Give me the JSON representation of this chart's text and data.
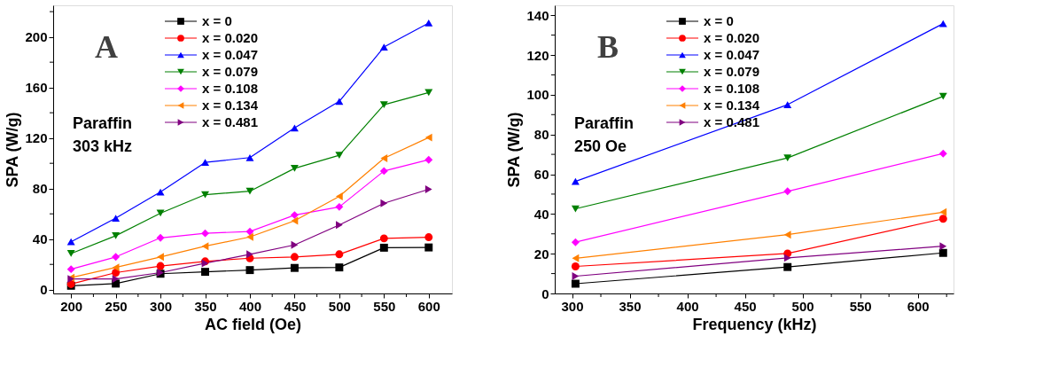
{
  "chart_data": [
    {
      "type": "line",
      "xlabel": "AC field (Oe)",
      "ylabel": "SPA (W/g)",
      "annotations": [
        "A",
        "Paraffin\n303 kHz"
      ],
      "x": [
        200,
        250,
        300,
        350,
        400,
        450,
        500,
        550,
        600
      ],
      "xlim": [
        180,
        626
      ],
      "ylim": [
        -3,
        225
      ],
      "xticks": [
        200,
        {
          "value": 225,
          "label": null
        },
        250,
        {
          "value": 275,
          "label": null
        },
        300,
        {
          "value": 325,
          "label": null
        },
        350,
        {
          "value": 375,
          "label": null
        },
        400,
        {
          "value": 425,
          "label": null
        },
        450,
        {
          "value": 475,
          "label": null
        },
        500,
        {
          "value": 525,
          "label": null
        },
        550,
        {
          "value": 575,
          "label": null
        },
        600
      ],
      "yticks": [
        0,
        {
          "value": 20,
          "label": null
        },
        40,
        {
          "value": 60,
          "label": null
        },
        80,
        {
          "value": 100,
          "label": null
        },
        120,
        {
          "value": 140,
          "label": null
        },
        160,
        {
          "value": 180,
          "label": null
        },
        200,
        {
          "value": 220,
          "label": null
        }
      ],
      "grid": false,
      "legend": "top left",
      "series": [
        {
          "name": "x = 0",
          "color": "#000000",
          "marker": "square",
          "values": [
            3.1,
            4.8,
            12.6,
            14.1,
            15.5,
            17.2,
            17.6,
            33.2,
            33.4
          ]
        },
        {
          "name": "x = 0.020",
          "color": "#ff0000",
          "marker": "circle",
          "values": [
            4.4,
            13.5,
            18.7,
            22.4,
            24.9,
            25.9,
            28.0,
            40.6,
            41.5
          ]
        },
        {
          "name": "x = 0.047",
          "color": "#0000ff",
          "marker": "triangle-up",
          "values": [
            37.9,
            56.6,
            77.3,
            100.7,
            104.5,
            128,
            149,
            192,
            211
          ]
        },
        {
          "name": "x = 0.079",
          "color": "#008000",
          "marker": "triangle-down",
          "values": [
            28.6,
            42.7,
            60.5,
            75.2,
            77.9,
            96,
            106.3,
            146.3,
            156
          ]
        },
        {
          "name": "x = 0.108",
          "color": "#ff00ff",
          "marker": "diamond",
          "values": [
            16.2,
            25.9,
            41,
            44.6,
            46,
            59,
            65.5,
            93.9,
            102.8
          ]
        },
        {
          "name": "x = 0.134",
          "color": "#ff8000",
          "marker": "triangle-left",
          "values": [
            9.5,
            17.6,
            25.9,
            34.4,
            41.7,
            54.5,
            73.8,
            104,
            120.4
          ]
        },
        {
          "name": "x = 0.481",
          "color": "#800080",
          "marker": "triangle-right",
          "values": [
            8.5,
            8.5,
            13.5,
            20.9,
            28,
            35.4,
            51.2,
            68.4,
            79.4
          ]
        }
      ]
    },
    {
      "type": "line",
      "xlabel": "Frequency (kHz)",
      "ylabel": "SPA (W/g)",
      "annotations": [
        "B",
        "Paraffin\n250 Oe"
      ],
      "x": [
        303,
        487,
        622
      ],
      "xlim": [
        285,
        631
      ],
      "ylim": [
        0,
        145
      ],
      "xticks": [
        300,
        {
          "value": 325,
          "label": null
        },
        350,
        {
          "value": 375,
          "label": null
        },
        400,
        {
          "value": 425,
          "label": null
        },
        450,
        {
          "value": 475,
          "label": null
        },
        500,
        {
          "value": 525,
          "label": null
        },
        550,
        {
          "value": 575,
          "label": null
        },
        600,
        {
          "value": 625,
          "label": null
        }
      ],
      "yticks": [
        0,
        {
          "value": 10,
          "label": null
        },
        20,
        {
          "value": 30,
          "label": null
        },
        40,
        {
          "value": 50,
          "label": null
        },
        60,
        {
          "value": 70,
          "label": null
        },
        80,
        {
          "value": 90,
          "label": null
        },
        100,
        {
          "value": 110,
          "label": null
        },
        120,
        {
          "value": 130,
          "label": null
        },
        140
      ],
      "grid": false,
      "legend": "top left",
      "series": [
        {
          "name": "x = 0",
          "color": "#000000",
          "marker": "square",
          "values": [
            4.9,
            13.3,
            20.4
          ]
        },
        {
          "name": "x = 0.020",
          "color": "#ff0000",
          "marker": "circle",
          "values": [
            13.6,
            20.1,
            37.6
          ]
        },
        {
          "name": "x = 0.047",
          "color": "#0000ff",
          "marker": "triangle-up",
          "values": [
            56.4,
            95,
            135.8
          ]
        },
        {
          "name": "x = 0.079",
          "color": "#008000",
          "marker": "triangle-down",
          "values": [
            42.6,
            68.2,
            99.2
          ]
        },
        {
          "name": "x = 0.108",
          "color": "#ff00ff",
          "marker": "diamond",
          "values": [
            25.8,
            51.4,
            70.4
          ]
        },
        {
          "name": "x = 0.134",
          "color": "#ff8000",
          "marker": "triangle-left",
          "values": [
            17.7,
            29.6,
            40.9
          ]
        },
        {
          "name": "x = 0.481",
          "color": "#800080",
          "marker": "triangle-right",
          "values": [
            8.7,
            17.9,
            23.8
          ]
        }
      ]
    }
  ]
}
